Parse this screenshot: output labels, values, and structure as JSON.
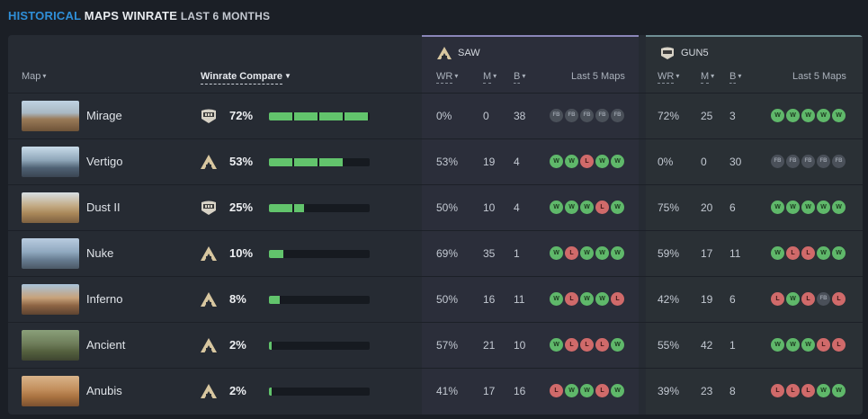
{
  "title": {
    "part1": "HISTORICAL",
    "part2": "MAPS WINRATE",
    "part3": "LAST 6 MONTHS"
  },
  "colors": {
    "accent": "#2f8fd8",
    "win": "#5fb86a",
    "loss": "#d06a6a",
    "bar": "#62c46c"
  },
  "headers": {
    "map": "Map",
    "winrate_compare": "Winrate Compare",
    "wr": "WR",
    "m": "M",
    "b": "B",
    "last5": "Last 5 Maps"
  },
  "teams": {
    "saw": {
      "name": "SAW",
      "icon": "saw-logo-icon"
    },
    "gun5": {
      "name": "GUN5",
      "icon": "gun5-logo-icon"
    }
  },
  "rows": [
    {
      "map": "Mirage",
      "leader": "gun5",
      "pct": "72%",
      "bar": 1.0,
      "saw": {
        "wr": "0%",
        "m": "0",
        "b": "38",
        "last5": [
          "FB",
          "FB",
          "FB",
          "FB",
          "FB"
        ]
      },
      "gun5": {
        "wr": "72%",
        "m": "25",
        "b": "3",
        "last5": [
          "W",
          "W",
          "W",
          "W",
          "W"
        ]
      }
    },
    {
      "map": "Vertigo",
      "leader": "saw",
      "pct": "53%",
      "bar": 0.74,
      "saw": {
        "wr": "53%",
        "m": "19",
        "b": "4",
        "last5": [
          "W",
          "W",
          "L",
          "W",
          "W"
        ]
      },
      "gun5": {
        "wr": "0%",
        "m": "0",
        "b": "30",
        "last5": [
          "FB",
          "FB",
          "FB",
          "FB",
          "FB"
        ]
      }
    },
    {
      "map": "Dust II",
      "leader": "gun5",
      "pct": "25%",
      "bar": 0.35,
      "saw": {
        "wr": "50%",
        "m": "10",
        "b": "4",
        "last5": [
          "W",
          "W",
          "W",
          "L",
          "W"
        ]
      },
      "gun5": {
        "wr": "75%",
        "m": "20",
        "b": "6",
        "last5": [
          "W",
          "W",
          "W",
          "W",
          "W"
        ]
      }
    },
    {
      "map": "Nuke",
      "leader": "saw",
      "pct": "10%",
      "bar": 0.14,
      "saw": {
        "wr": "69%",
        "m": "35",
        "b": "1",
        "last5": [
          "W",
          "L",
          "W",
          "W",
          "W"
        ]
      },
      "gun5": {
        "wr": "59%",
        "m": "17",
        "b": "11",
        "last5": [
          "W",
          "L",
          "L",
          "W",
          "W"
        ]
      }
    },
    {
      "map": "Inferno",
      "leader": "saw",
      "pct": "8%",
      "bar": 0.11,
      "saw": {
        "wr": "50%",
        "m": "16",
        "b": "11",
        "last5": [
          "W",
          "L",
          "W",
          "W",
          "L"
        ]
      },
      "gun5": {
        "wr": "42%",
        "m": "19",
        "b": "6",
        "last5": [
          "L",
          "W",
          "L",
          "FB",
          "L"
        ]
      }
    },
    {
      "map": "Ancient",
      "leader": "saw",
      "pct": "2%",
      "bar": 0.03,
      "saw": {
        "wr": "57%",
        "m": "21",
        "b": "10",
        "last5": [
          "W",
          "L",
          "L",
          "L",
          "W"
        ]
      },
      "gun5": {
        "wr": "55%",
        "m": "42",
        "b": "1",
        "last5": [
          "W",
          "W",
          "W",
          "L",
          "L"
        ]
      }
    },
    {
      "map": "Anubis",
      "leader": "saw",
      "pct": "2%",
      "bar": 0.03,
      "saw": {
        "wr": "41%",
        "m": "17",
        "b": "16",
        "last5": [
          "L",
          "W",
          "W",
          "L",
          "W"
        ]
      },
      "gun5": {
        "wr": "39%",
        "m": "23",
        "b": "8",
        "last5": [
          "L",
          "L",
          "L",
          "W",
          "W"
        ]
      }
    }
  ]
}
